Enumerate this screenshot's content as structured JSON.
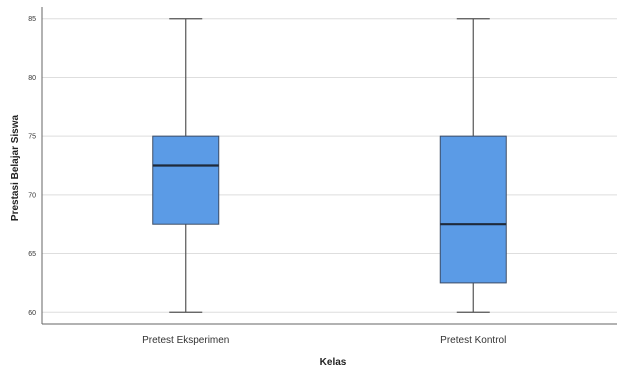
{
  "chart_data": {
    "type": "boxplot",
    "title": "",
    "xlabel": "Kelas",
    "ylabel": "Prestasi Belajar Siswa",
    "ylim": [
      59,
      86
    ],
    "yticks": [
      60,
      65,
      70,
      75,
      80,
      85
    ],
    "ytick_labels": [
      "60",
      "65",
      "70",
      "75",
      "80",
      "85"
    ],
    "grid": "horizontal",
    "categories": [
      "Pretest Eksperimen",
      "Pretest Kontrol"
    ],
    "boxes": [
      {
        "category": "Pretest Eksperimen",
        "min": 60,
        "q1": 67.5,
        "median": 72.5,
        "q3": 75,
        "max": 85
      },
      {
        "category": "Pretest Kontrol",
        "min": 60,
        "q1": 62.5,
        "median": 67.5,
        "q3": 75,
        "max": 85
      }
    ],
    "colors": {
      "box_fill": "#5b9be6",
      "box_stroke": "#3d4d66",
      "median": "#1f2a3a",
      "whisker": "#555555",
      "grid": "#dedede",
      "axis": "#666666"
    }
  }
}
